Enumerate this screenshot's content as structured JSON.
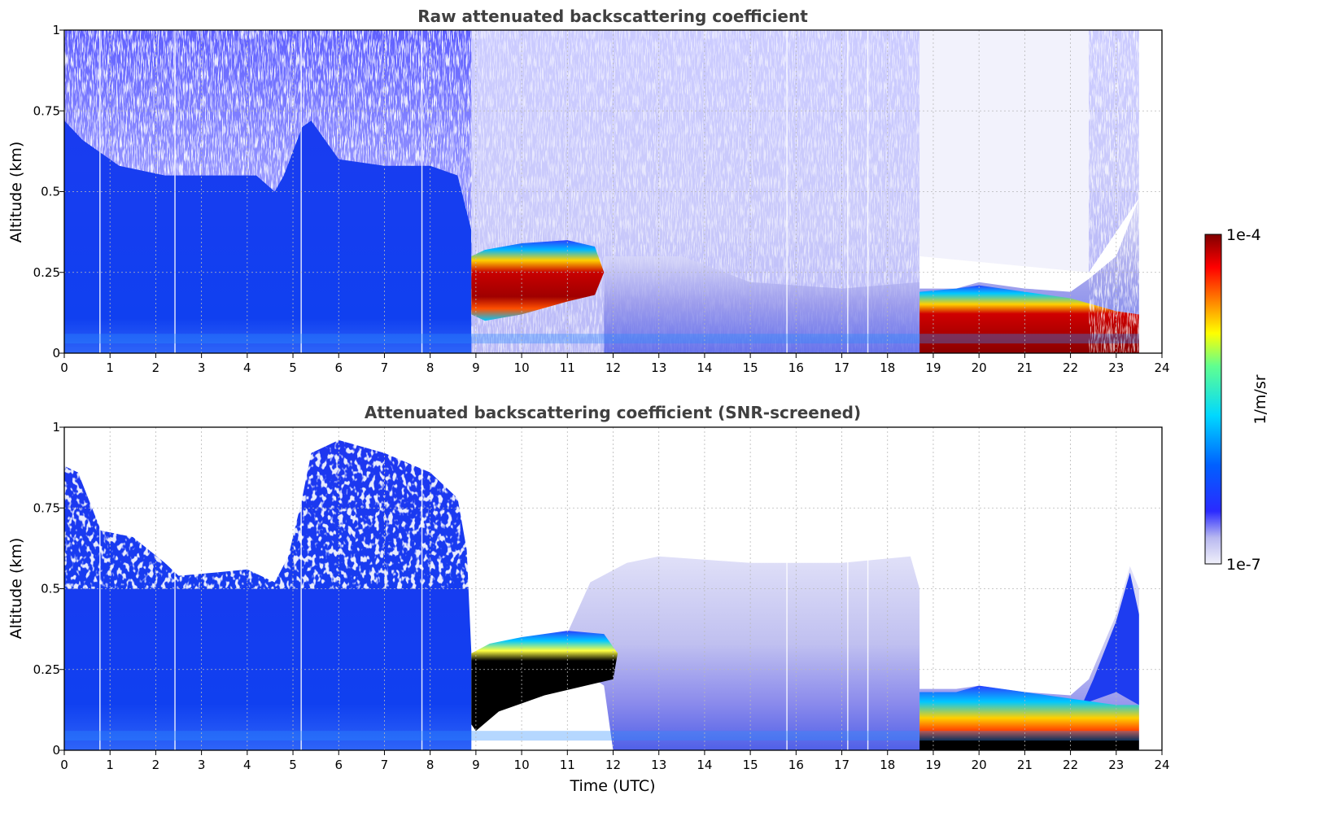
{
  "chart_data": [
    {
      "type": "heatmap",
      "title": "Raw attenuated backscattering coefficient",
      "xlabel": "",
      "ylabel": "Altitude (km)",
      "xlim": [
        0,
        24
      ],
      "ylim": [
        0,
        1
      ],
      "xticks": [
        "0",
        "1",
        "2",
        "3",
        "4",
        "5",
        "6",
        "7",
        "8",
        "9",
        "10",
        "11",
        "12",
        "13",
        "14",
        "15",
        "16",
        "17",
        "18",
        "19",
        "20",
        "21",
        "22",
        "23",
        "24"
      ],
      "yticks": [
        "0",
        "0.25",
        "0.5",
        "0.75",
        "1"
      ],
      "grid": true,
      "data_end_time": 23.5,
      "regions": [
        {
          "t0": 0.0,
          "t1": 8.9,
          "z0": 0.0,
          "z1": 0.55,
          "level": "low"
        },
        {
          "t0": 8.9,
          "t1": 11.8,
          "z0": 0.1,
          "z1": 0.33,
          "level": "peak"
        },
        {
          "t0": 11.8,
          "t1": 18.7,
          "z0": 0.0,
          "z1": 0.3,
          "level": "faint"
        },
        {
          "t0": 18.7,
          "t1": 23.5,
          "z0": 0.0,
          "z1": 0.2,
          "level": "peak"
        }
      ]
    },
    {
      "type": "heatmap",
      "title": "Attenuated backscattering coefficient (SNR-screened)",
      "xlabel": "Time (UTC)",
      "ylabel": "Altitude (km)",
      "xlim": [
        0,
        24
      ],
      "ylim": [
        0,
        1
      ],
      "xticks": [
        "0",
        "1",
        "2",
        "3",
        "4",
        "5",
        "6",
        "7",
        "8",
        "9",
        "10",
        "11",
        "12",
        "13",
        "14",
        "15",
        "16",
        "17",
        "18",
        "19",
        "20",
        "21",
        "22",
        "23",
        "24"
      ],
      "yticks": [
        "0",
        "0.25",
        "0.5",
        "0.75",
        "1"
      ],
      "grid": true,
      "data_end_time": 23.5,
      "regions": [
        {
          "t0": 0.0,
          "t1": 8.9,
          "z0": 0.0,
          "z1": 0.6,
          "level": "low"
        },
        {
          "t0": 8.9,
          "t1": 12.0,
          "z0": 0.1,
          "z1": 0.35,
          "level": "saturated"
        },
        {
          "t0": 12.0,
          "t1": 18.7,
          "z0": 0.0,
          "z1": 0.55,
          "level": "faint"
        },
        {
          "t0": 18.7,
          "t1": 23.5,
          "z0": 0.0,
          "z1": 0.2,
          "level": "saturated"
        }
      ]
    }
  ],
  "colorbar": {
    "label": "1/m/sr",
    "max_label": "1e-4",
    "min_label": "1e-7",
    "colormap": "jet",
    "scale": "log",
    "range": [
      1e-07,
      0.0001
    ]
  }
}
